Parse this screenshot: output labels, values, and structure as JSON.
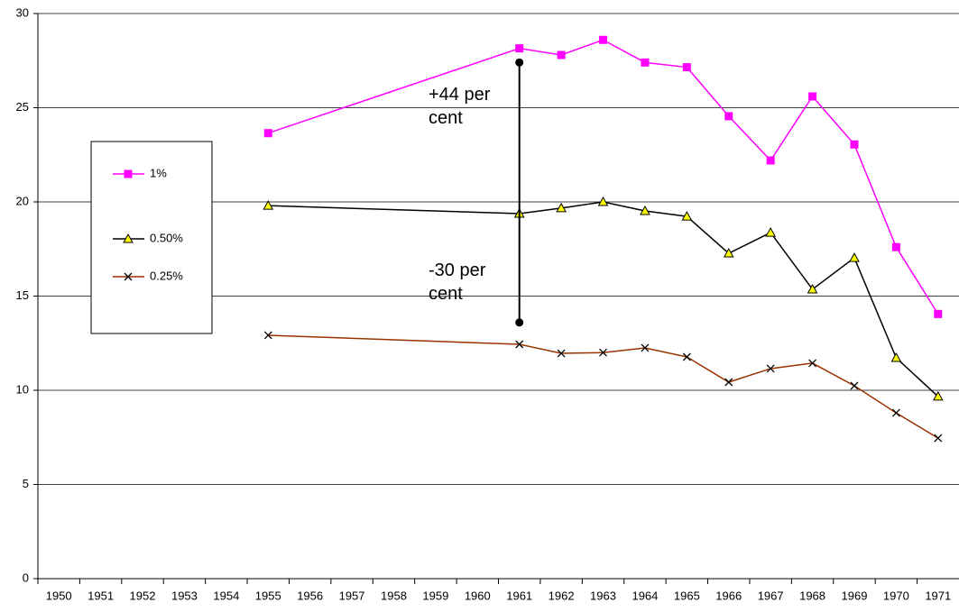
{
  "chart_data": {
    "type": "line",
    "x": [
      1955,
      1961,
      1962,
      1963,
      1964,
      1965,
      1966,
      1967,
      1968,
      1969,
      1970,
      1971
    ],
    "series": [
      {
        "name": "1%",
        "color": "#ff00ff",
        "marker": "square",
        "values": [
          23.65,
          28.15,
          27.8,
          28.6,
          27.4,
          27.15,
          24.55,
          22.2,
          25.6,
          23.05,
          17.6,
          14.05
        ]
      },
      {
        "name": "0.50%",
        "color": "#000000",
        "marker": "triangle",
        "values": [
          19.8,
          19.38,
          19.67,
          20.0,
          19.52,
          19.23,
          17.27,
          18.37,
          15.36,
          17.03,
          11.72,
          9.67
        ]
      },
      {
        "name": "0.25%",
        "color": "#993300",
        "marker": "x",
        "values": [
          12.92,
          12.44,
          11.96,
          12.0,
          12.25,
          11.77,
          10.43,
          11.15,
          11.44,
          10.24,
          8.8,
          7.46
        ]
      }
    ],
    "xlim": [
      1949.5,
      1971.5
    ],
    "xticks": [
      1950,
      1951,
      1952,
      1953,
      1954,
      1955,
      1956,
      1957,
      1958,
      1959,
      1960,
      1961,
      1962,
      1963,
      1964,
      1965,
      1966,
      1967,
      1968,
      1969,
      1970,
      1971
    ],
    "ylim": [
      0,
      30
    ],
    "yticks": [
      0,
      5,
      10,
      15,
      20,
      25,
      30
    ],
    "grid": true,
    "legend": "left",
    "annotation_line": {
      "x": 1961,
      "y_start": 27.4,
      "y_end": 13.6
    },
    "annotations": [
      "+44 per cent",
      "-30 per cent"
    ]
  }
}
